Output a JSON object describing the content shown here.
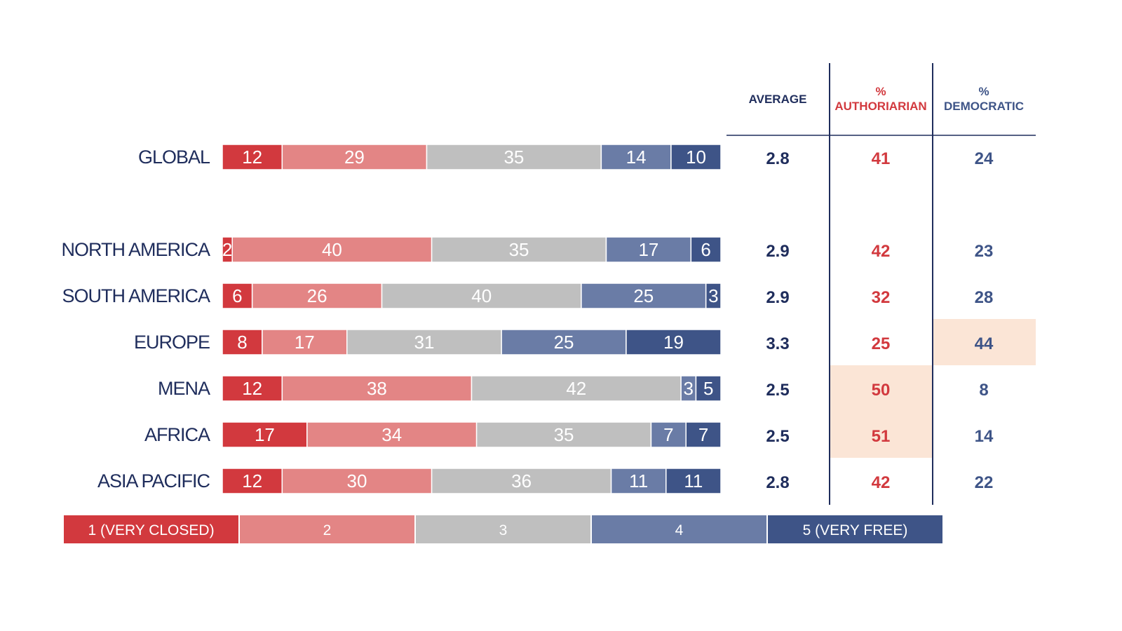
{
  "colors": {
    "c1": "#d2393e",
    "c2": "#e38585",
    "c3": "#bfbfbf",
    "c4": "#6a7ca6",
    "c5": "#3e5487",
    "navy": "#1f2d5c",
    "red_text": "#d2393e",
    "blue_text": "#3e5487",
    "highlight": "#fbe5d6"
  },
  "columns": {
    "average": "AVERAGE",
    "authoritarian_pct": "%",
    "authoritarian": "AUTHORIARIAN",
    "democratic_pct": "%",
    "democratic": "DEMOCRATIC"
  },
  "legend": [
    "1 (VERY CLOSED)",
    "2",
    "3",
    "4",
    "5 (VERY FREE)"
  ],
  "chart_data": {
    "type": "bar",
    "stacked": true,
    "orientation": "horizontal",
    "scale": "percent",
    "categories": [
      "GLOBAL",
      "NORTH AMERICA",
      "SOUTH AMERICA",
      "EUROPE",
      "MENA",
      "AFRICA",
      "ASIA PACIFIC"
    ],
    "series": [
      {
        "name": "1 (VERY CLOSED)",
        "values": [
          12,
          2,
          6,
          8,
          12,
          17,
          12
        ]
      },
      {
        "name": "2",
        "values": [
          29,
          40,
          26,
          17,
          38,
          34,
          30
        ]
      },
      {
        "name": "3",
        "values": [
          35,
          35,
          40,
          31,
          42,
          35,
          36
        ]
      },
      {
        "name": "4",
        "values": [
          14,
          17,
          25,
          25,
          3,
          7,
          11
        ]
      },
      {
        "name": "5 (VERY FREE)",
        "values": [
          10,
          6,
          3,
          19,
          5,
          7,
          11
        ]
      }
    ],
    "table": {
      "average": [
        "2.8",
        "2.9",
        "2.9",
        "3.3",
        "2.5",
        "2.5",
        "2.8"
      ],
      "authoritarian": [
        41,
        42,
        32,
        25,
        50,
        51,
        42
      ],
      "democratic": [
        24,
        23,
        28,
        44,
        8,
        14,
        22
      ],
      "highlighted": [
        {
          "column": "democratic",
          "row": "EUROPE"
        },
        {
          "column": "authoritarian",
          "row": "MENA"
        },
        {
          "column": "authoritarian",
          "row": "AFRICA"
        }
      ]
    }
  }
}
